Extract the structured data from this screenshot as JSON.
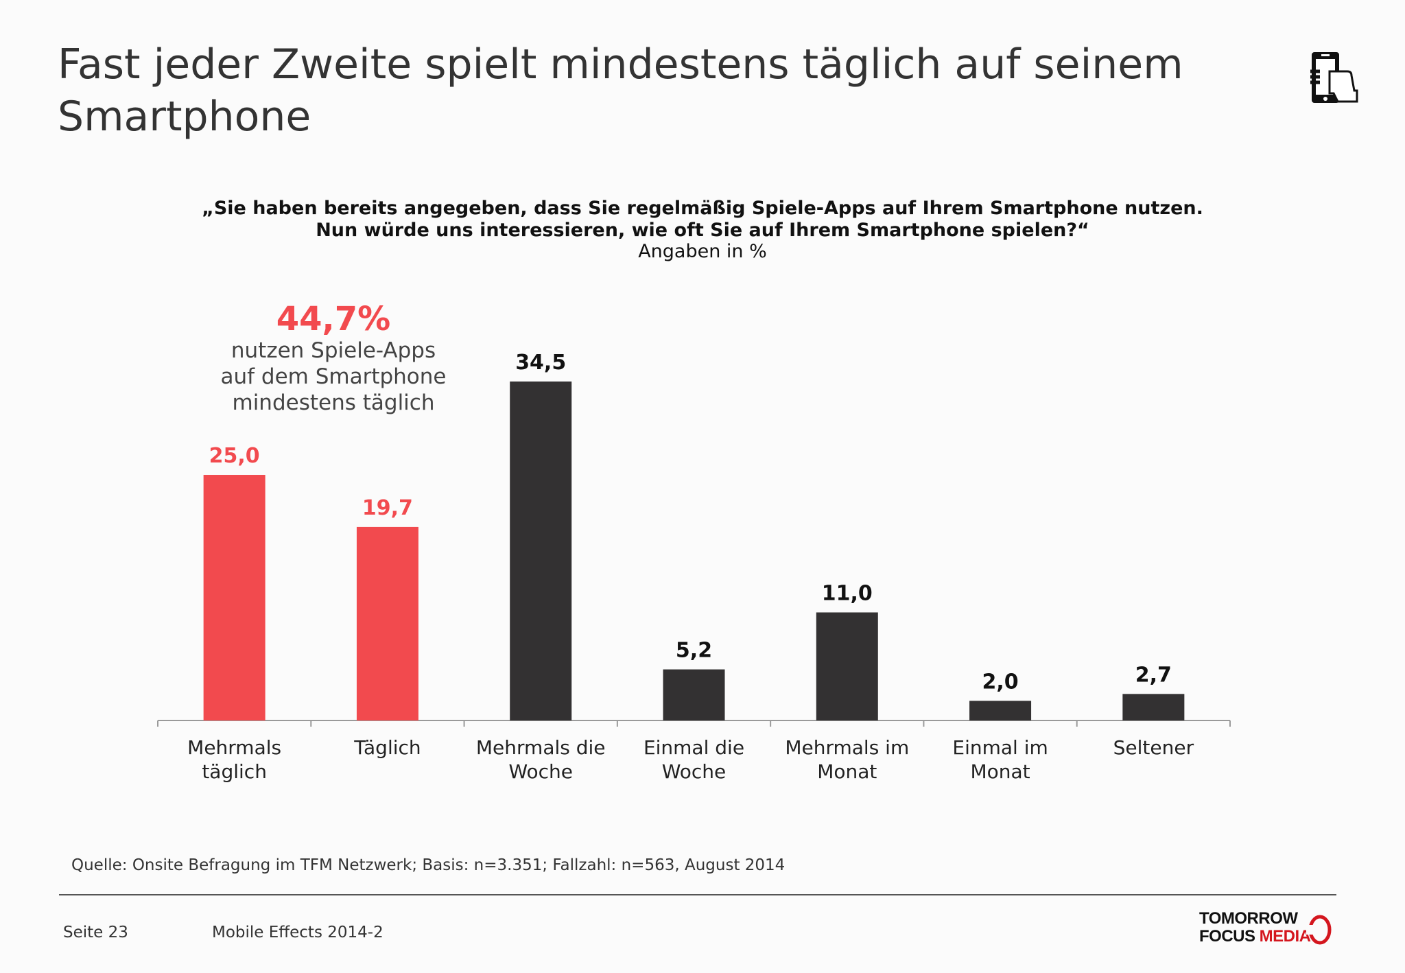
{
  "header": {
    "title_line1": "Fast jeder Zweite spielt mindestens täglich auf seinem",
    "title_line2": "Smartphone",
    "icon": "smartphone-hand-icon"
  },
  "question": {
    "line1": "„Sie haben bereits angegeben, dass Sie regelmäßig Spiele-Apps auf Ihrem Smartphone nutzen.",
    "line2": "Nun würde uns interessieren, wie oft Sie auf Ihrem Smartphone spielen?“",
    "unit": "Angaben in %"
  },
  "highlight": {
    "value": "44,7%",
    "line1": "nutzen Spiele-Apps",
    "line2": "auf dem Smartphone",
    "line3": "mindestens täglich"
  },
  "chart_data": {
    "type": "bar",
    "categories": [
      [
        "Mehrmals",
        "täglich"
      ],
      [
        "Täglich"
      ],
      [
        "Mehrmals die",
        "Woche"
      ],
      [
        "Einmal die",
        "Woche"
      ],
      [
        "Mehrmals im",
        "Monat"
      ],
      [
        "Einmal im",
        "Monat"
      ],
      [
        "Seltener"
      ]
    ],
    "values": [
      25.0,
      19.7,
      34.5,
      5.2,
      11.0,
      2.0,
      2.7
    ],
    "labels": [
      "25,0",
      "19,7",
      "34,5",
      "5,2",
      "11,0",
      "2,0",
      "2,7"
    ],
    "highlighted": [
      true,
      true,
      false,
      false,
      false,
      false,
      false
    ],
    "colors": {
      "highlight": "#f24a4e",
      "default": "#333132",
      "axis": "#9a9a9a"
    },
    "ylim": [
      0,
      34.5
    ],
    "grid": false
  },
  "source": "Quelle: Onsite Befragung im TFM Netzwerk; Basis: n=3.351; Fallzahl: n=563, August 2014",
  "footer": {
    "page": "Seite 23",
    "report": "Mobile Effects 2014-2",
    "logo_line1": "TOMORROW",
    "logo_focus": "FOCUS",
    "logo_media": "MEDIA"
  }
}
